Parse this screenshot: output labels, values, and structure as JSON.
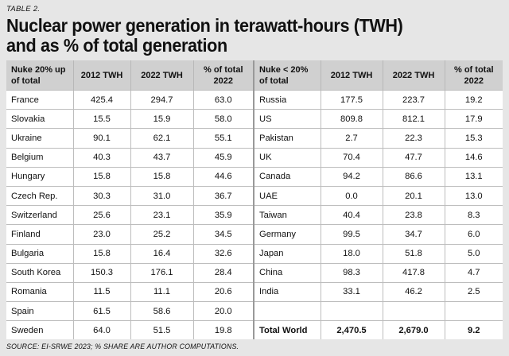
{
  "label": "TABLE 2.",
  "title_line1": "Nuclear power generation in terawatt-hours (TWH)",
  "title_line2": "and as % of total generation",
  "headers": {
    "left_country": [
      "Nuke 20% up",
      "of total"
    ],
    "y2012": "2012 TWH",
    "y2022": "2022 TWH",
    "share": [
      "% of total",
      "2022"
    ],
    "right_country": [
      "Nuke < 20%",
      "of total"
    ]
  },
  "left_rows": [
    {
      "country": "France",
      "y2012": "425.4",
      "y2022": "294.7",
      "share": "63.0"
    },
    {
      "country": "Slovakia",
      "y2012": "15.5",
      "y2022": "15.9",
      "share": "58.0"
    },
    {
      "country": "Ukraine",
      "y2012": "90.1",
      "y2022": "62.1",
      "share": "55.1"
    },
    {
      "country": "Belgium",
      "y2012": "40.3",
      "y2022": "43.7",
      "share": "45.9"
    },
    {
      "country": "Hungary",
      "y2012": "15.8",
      "y2022": "15.8",
      "share": "44.6"
    },
    {
      "country": "Czech Rep.",
      "y2012": "30.3",
      "y2022": "31.0",
      "share": "36.7"
    },
    {
      "country": "Switzerland",
      "y2012": "25.6",
      "y2022": "23.1",
      "share": "35.9"
    },
    {
      "country": "Finland",
      "y2012": "23.0",
      "y2022": "25.2",
      "share": "34.5"
    },
    {
      "country": "Bulgaria",
      "y2012": "15.8",
      "y2022": "16.4",
      "share": "32.6"
    },
    {
      "country": "South Korea",
      "y2012": "150.3",
      "y2022": "176.1",
      "share": "28.4"
    },
    {
      "country": "Romania",
      "y2012": "11.5",
      "y2022": "11.1",
      "share": "20.6"
    },
    {
      "country": "Spain",
      "y2012": "61.5",
      "y2022": "58.6",
      "share": "20.0"
    },
    {
      "country": "Sweden",
      "y2012": "64.0",
      "y2022": "51.5",
      "share": "19.8"
    }
  ],
  "right_rows": [
    {
      "country": "Russia",
      "y2012": "177.5",
      "y2022": "223.7",
      "share": "19.2"
    },
    {
      "country": "US",
      "y2012": "809.8",
      "y2022": "812.1",
      "share": "17.9"
    },
    {
      "country": "Pakistan",
      "y2012": "2.7",
      "y2022": "22.3",
      "share": "15.3"
    },
    {
      "country": "UK",
      "y2012": "70.4",
      "y2022": "47.7",
      "share": "14.6"
    },
    {
      "country": "Canada",
      "y2012": "94.2",
      "y2022": "86.6",
      "share": "13.1"
    },
    {
      "country": "UAE",
      "y2012": "0.0",
      "y2022": "20.1",
      "share": "13.0"
    },
    {
      "country": "Taiwan",
      "y2012": "40.4",
      "y2022": "23.8",
      "share": "8.3"
    },
    {
      "country": "Germany",
      "y2012": "99.5",
      "y2022": "34.7",
      "share": "6.0"
    },
    {
      "country": "Japan",
      "y2012": "18.0",
      "y2022": "51.8",
      "share": "5.0"
    },
    {
      "country": "China",
      "y2012": "98.3",
      "y2022": "417.8",
      "share": "4.7"
    },
    {
      "country": "India",
      "y2012": "33.1",
      "y2022": "46.2",
      "share": "2.5"
    },
    {
      "country": "",
      "y2012": "",
      "y2022": "",
      "share": ""
    },
    {
      "country": "Total World",
      "y2012": "2,470.5",
      "y2022": "2,679.0",
      "share": "9.2",
      "bold": true
    }
  ],
  "source": "SOURCE: EI-SRWE 2023; % SHARE ARE AUTHOR COMPUTATIONS."
}
